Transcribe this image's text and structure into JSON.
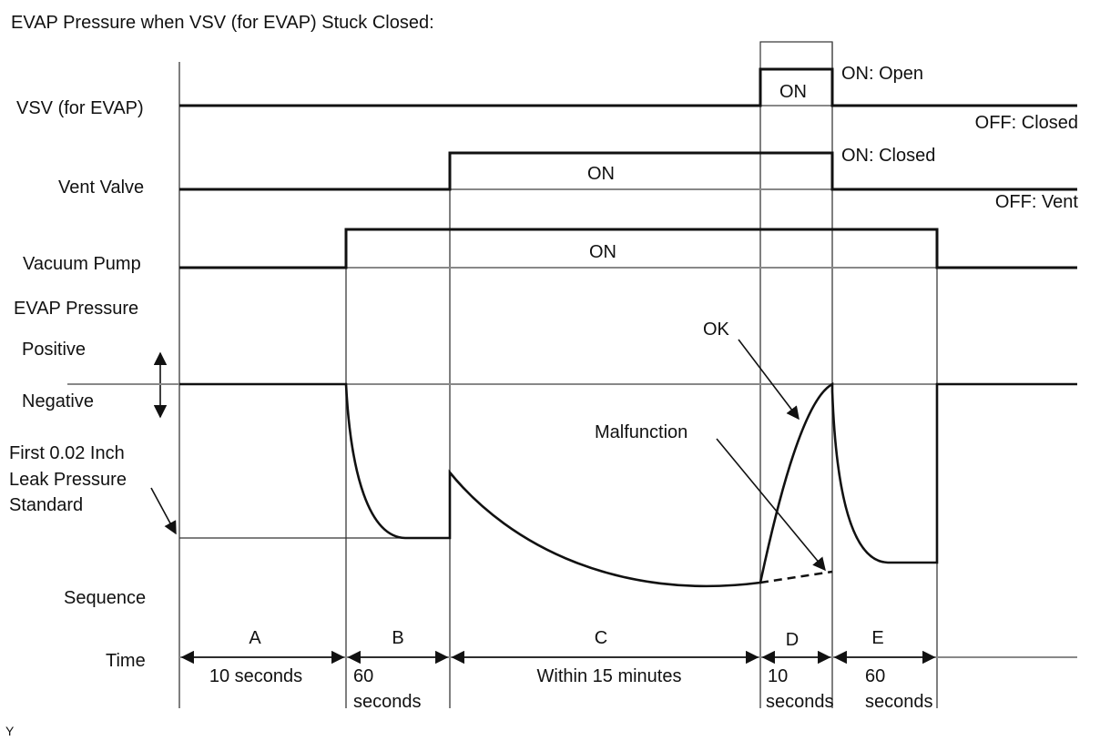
{
  "title": "EVAP Pressure when VSV (for EVAP) Stuck Closed:",
  "signals": {
    "vsv": {
      "label": "VSV (for EVAP)",
      "on_text": "ON",
      "on_state": "ON: Open",
      "off_state": "OFF: Closed"
    },
    "vent": {
      "label": "Vent Valve",
      "on_text": "ON",
      "on_state": "ON: Closed",
      "off_state": "OFF: Vent"
    },
    "pump": {
      "label": "Vacuum Pump",
      "on_text": "ON"
    }
  },
  "pressure": {
    "label": "EVAP Pressure",
    "positive": "Positive",
    "negative": "Negative",
    "standard_line1": "First 0.02 Inch",
    "standard_line2": "Leak Pressure",
    "standard_line3": "Standard",
    "ok_label": "OK",
    "malfunction_label": "Malfunction"
  },
  "sequence": {
    "label": "Sequence",
    "time_label": "Time",
    "phases": [
      {
        "letter": "A",
        "time_line1": "10 seconds",
        "time_line2": ""
      },
      {
        "letter": "B",
        "time_line1": "60",
        "time_line2": "seconds"
      },
      {
        "letter": "C",
        "time_line1": "Within 15 minutes",
        "time_line2": ""
      },
      {
        "letter": "D",
        "time_line1": "10",
        "time_line2": "seconds"
      },
      {
        "letter": "E",
        "time_line1": "60",
        "time_line2": "seconds"
      }
    ]
  },
  "footer_code": "Y"
}
